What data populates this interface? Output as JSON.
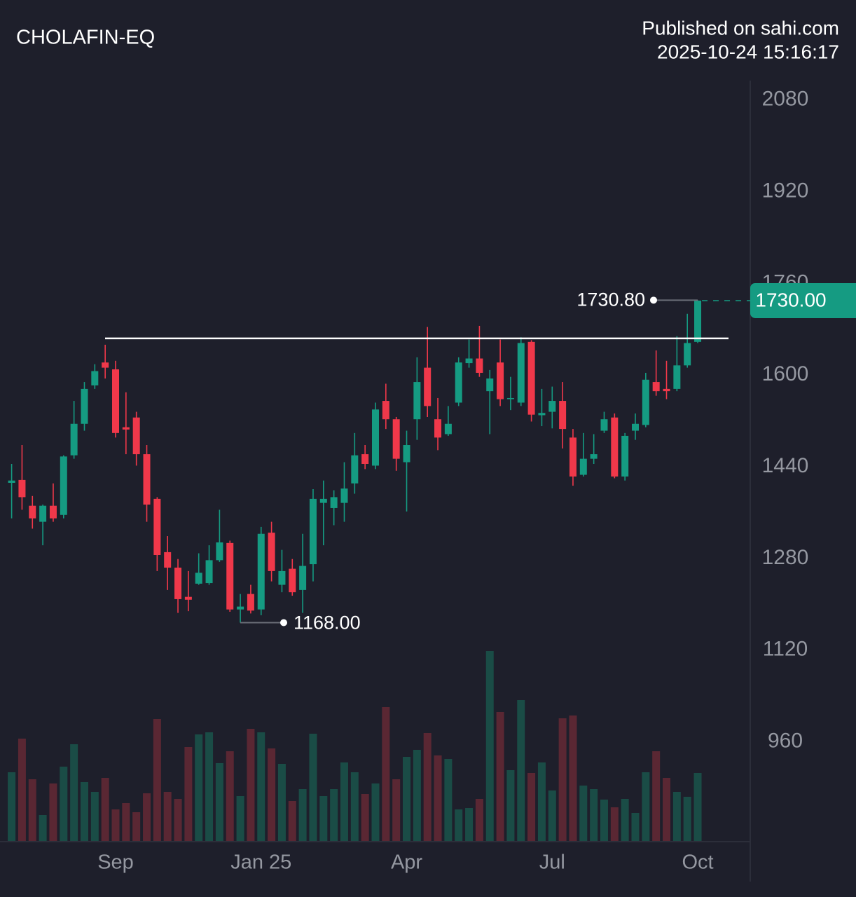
{
  "chart_data": {
    "type": "candlestick",
    "title": "CHOLAFIN-EQ",
    "publisher": "Published on sahi.com",
    "timestamp": "2025-10-24 15:16:17",
    "categories": [
      null,
      null,
      null,
      null,
      null,
      null,
      null,
      null,
      null,
      null,
      "Sep",
      null,
      null,
      null,
      null,
      null,
      null,
      null,
      null,
      null,
      null,
      null,
      null,
      null,
      "Jan 25",
      null,
      null,
      null,
      null,
      null,
      null,
      null,
      null,
      null,
      null,
      null,
      null,
      null,
      "Apr",
      null,
      null,
      null,
      null,
      null,
      null,
      null,
      null,
      null,
      null,
      null,
      null,
      null,
      "Jul",
      null,
      null,
      null,
      null,
      null,
      null,
      null,
      null,
      null,
      null,
      null,
      null,
      null,
      "Oct"
    ],
    "open": [
      1412,
      1417,
      1372,
      1344,
      1372,
      1356,
      1460,
      1515,
      1582,
      1622,
      1610,
      1509,
      1526,
      1462,
      1384,
      1291,
      1264,
      1213,
      1236,
      1237,
      1277,
      1307,
      1191,
      1218,
      1191,
      1325,
      1234,
      1262,
      1225,
      1270,
      1377,
      1368,
      1377,
      1411,
      1462,
      1442,
      1555,
      1523,
      1448,
      1523,
      1613,
      1523,
      1497,
      1552,
      1621,
      1629,
      1572,
      1622,
      1558,
      1552,
      1658,
      1530,
      1536,
      1555,
      1491,
      1426,
      1454,
      1503,
      1526,
      1423,
      1503,
      1513,
      1588,
      1576,
      1576,
      1617,
      1658
    ],
    "high": [
      1445,
      1478,
      1389,
      1374,
      1411,
      1460,
      1555,
      1588,
      1619,
      1653,
      1625,
      1570,
      1536,
      1478,
      1387,
      1319,
      1279,
      1258,
      1289,
      1303,
      1365,
      1311,
      1218,
      1234,
      1335,
      1344,
      1295,
      1279,
      1323,
      1401,
      1416,
      1399,
      1448,
      1499,
      1478,
      1552,
      1585,
      1527,
      1503,
      1631,
      1684,
      1560,
      1546,
      1631,
      1662,
      1686,
      1609,
      1662,
      1597,
      1666,
      1661,
      1576,
      1580,
      1588,
      1506,
      1499,
      1497,
      1536,
      1533,
      1499,
      1533,
      1604,
      1643,
      1625,
      1668,
      1707,
      1730.8
    ],
    "low": [
      1350,
      1365,
      1332,
      1303,
      1344,
      1350,
      1454,
      1503,
      1576,
      1594,
      1491,
      1462,
      1442,
      1344,
      1258,
      1225,
      1185,
      1188,
      1234,
      1234,
      1274,
      1187,
      1168,
      1184,
      1181,
      1240,
      1221,
      1215,
      1185,
      1240,
      1303,
      1338,
      1344,
      1393,
      1436,
      1436,
      1506,
      1433,
      1362,
      1487,
      1527,
      1469,
      1494,
      1546,
      1613,
      1597,
      1497,
      1546,
      1539,
      1546,
      1519,
      1511,
      1507,
      1472,
      1407,
      1423,
      1445,
      1499,
      1420,
      1416,
      1487,
      1509,
      1564,
      1558,
      1572,
      1613,
      1656
    ],
    "close": [
      1416,
      1387,
      1350,
      1372,
      1350,
      1458,
      1515,
      1576,
      1607,
      1613,
      1499,
      1505,
      1462,
      1374,
      1286,
      1264,
      1209,
      1208,
      1255,
      1277,
      1308,
      1191,
      1196,
      1189,
      1323,
      1258,
      1258,
      1221,
      1267,
      1384,
      1384,
      1387,
      1402,
      1460,
      1445,
      1540,
      1523,
      1454,
      1478,
      1588,
      1546,
      1491,
      1515,
      1622,
      1629,
      1604,
      1594,
      1558,
      1560,
      1656,
      1531,
      1534,
      1555,
      1506,
      1423,
      1454,
      1462,
      1523,
      1423,
      1494,
      1515,
      1592,
      1572,
      1572,
      1617,
      1656,
      1730
    ],
    "volume": [
      98,
      146,
      88,
      37,
      82,
      106,
      138,
      84,
      70,
      90,
      45,
      54,
      41,
      68,
      174,
      70,
      60,
      134,
      152,
      155,
      111,
      128,
      64,
      160,
      155,
      132,
      110,
      57,
      74,
      153,
      64,
      74,
      112,
      98,
      67,
      82,
      191,
      88,
      120,
      130,
      154,
      122,
      117,
      45,
      47,
      60,
      271,
      184,
      101,
      201,
      97,
      112,
      72,
      175,
      179,
      79,
      74,
      59,
      48,
      60,
      40,
      98,
      128,
      90,
      70,
      63,
      97
    ],
    "up_color": "#159b82",
    "down_color": "#f0384a",
    "volume_up_color": "#1a4c46",
    "volume_down_color": "#5a2733",
    "ylim": [
      787,
      2114
    ],
    "yticks": [
      960,
      1120,
      1280,
      1440,
      1600,
      1760,
      1920,
      2080
    ],
    "hline": 1664,
    "high_marker": {
      "value": 1730.8,
      "label": "1730.80"
    },
    "low_marker": {
      "value": 1168,
      "label": "1168.00"
    },
    "last_price": {
      "value": 1730,
      "label": "1730.00"
    }
  }
}
